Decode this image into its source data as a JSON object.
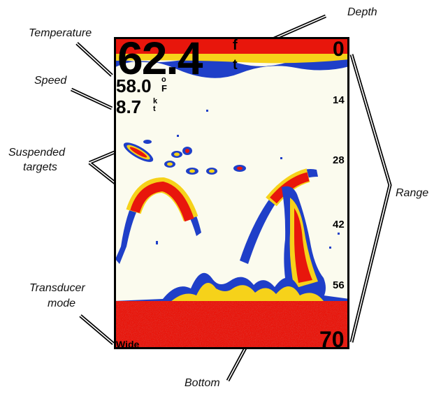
{
  "callouts": {
    "depth": "Depth",
    "temperature": "Temperature",
    "speed": "Speed",
    "suspended_targets_1": "Suspended",
    "suspended_targets_2": "targets",
    "range": "Range",
    "transducer_mode_1": "Transducer",
    "transducer_mode_2": "mode",
    "bottom": "Bottom"
  },
  "readouts": {
    "depth": "62.4",
    "depth_unit_top": "f",
    "depth_unit_bottom": "t",
    "temperature": "58.0",
    "temperature_unit_top": "o",
    "temperature_unit_bottom": "F",
    "speed": "8.7",
    "speed_unit_top": "k",
    "speed_unit_bottom": "t"
  },
  "range_scale": {
    "top": "0",
    "ticks": [
      "14",
      "28",
      "42",
      "56"
    ],
    "bottom": "70"
  },
  "transducer_mode": "Wide",
  "colors": {
    "strong_return": "#e8160c",
    "medium_return": "#f6d21a",
    "weak_return": "#1f3fc8",
    "faint_return": "#7ec6e6",
    "water": "#fbfbee",
    "frame": "#000000"
  }
}
